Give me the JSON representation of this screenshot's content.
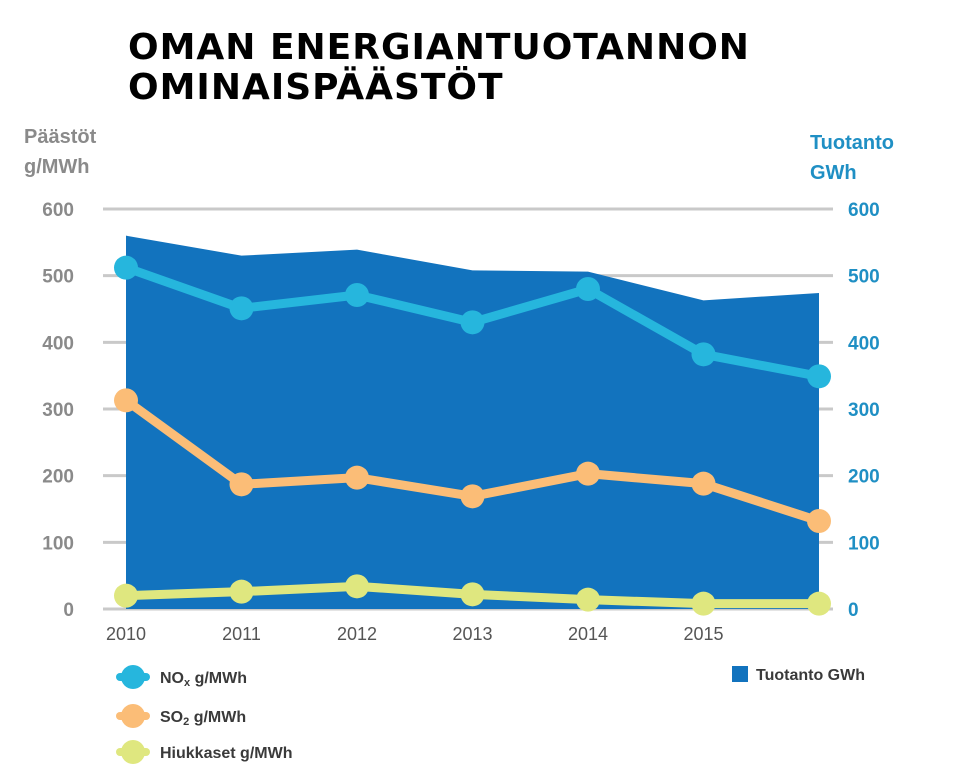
{
  "title": {
    "line1": "OMAN ENERGIANTUOTANNON",
    "line2": "OMINAISPÄÄSTÖT"
  },
  "chart_data": {
    "type": "line",
    "title": "OMAN ENERGIANTUOTANNON OMINAISPÄÄSTÖT",
    "ylabel_left": [
      "Päästöt",
      "g/MWh"
    ],
    "ylabel_right": [
      "Tuotanto",
      "GWh"
    ],
    "ylim_left": [
      0,
      600
    ],
    "ylim_right": [
      0,
      600
    ],
    "yticks": [
      "0",
      "100",
      "200",
      "300",
      "400",
      "500",
      "600"
    ],
    "x_tick_labels": [
      "2010",
      "2011",
      "2012",
      "2013",
      "2014",
      "2015"
    ],
    "x_points": 7,
    "grid": true,
    "legend_position": "bottom",
    "area_series": {
      "name": "Tuotanto GWh",
      "axis": "right",
      "color": "#1273be",
      "values": [
        560,
        530,
        539,
        508,
        506,
        463,
        474
      ]
    },
    "series": [
      {
        "name_main": "NO",
        "name_sub": "x",
        "name_rest": " g/MWh",
        "axis": "left",
        "color": "#26b6dd",
        "values": [
          512,
          451,
          471,
          430,
          480,
          382,
          349
        ]
      },
      {
        "name_main": "SO",
        "name_sub": "2",
        "name_rest": " g/MWh",
        "axis": "left",
        "color": "#fbbd77",
        "values": [
          313,
          187,
          197,
          169,
          203,
          188,
          132
        ]
      },
      {
        "name_main": "Hiukkaset g/MWh",
        "name_sub": "",
        "name_rest": "",
        "axis": "left",
        "color": "#dfe77f",
        "values": [
          20,
          26,
          34,
          22,
          14,
          8,
          8
        ]
      }
    ]
  }
}
